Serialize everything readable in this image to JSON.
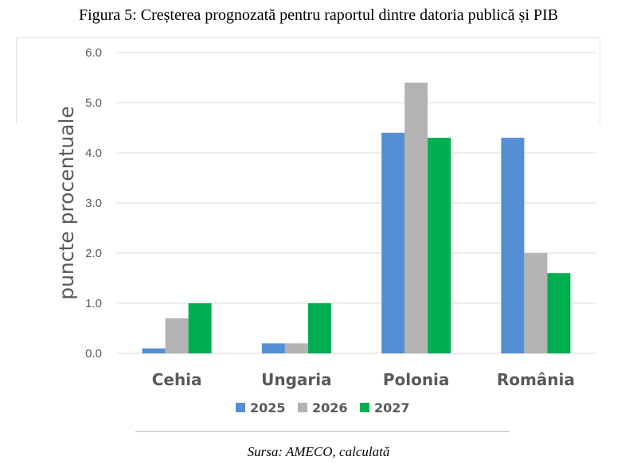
{
  "title": "Figura 5: Creșterea prognozată pentru raportul dintre datoria publică și PIB",
  "source": "Sursa: AMECO, calculată",
  "chart_data": {
    "type": "bar",
    "title": "",
    "ylabel": "puncte procentuale",
    "xlabel": "",
    "ylim": [
      0,
      6
    ],
    "yticks": [
      "0.0",
      "1.0",
      "2.0",
      "3.0",
      "4.0",
      "5.0",
      "6.0"
    ],
    "categories": [
      "Cehia",
      "Ungaria",
      "Polonia",
      "România"
    ],
    "series": [
      {
        "name": "2025",
        "color": "#558ed5",
        "values": [
          0.1,
          0.2,
          4.4,
          4.3
        ]
      },
      {
        "name": "2026",
        "color": "#b3b3b3",
        "values": [
          0.7,
          0.2,
          5.4,
          2.0
        ]
      },
      {
        "name": "2027",
        "color": "#00b050",
        "values": [
          1.0,
          1.0,
          4.3,
          1.6
        ]
      }
    ],
    "grid": true,
    "legend": "bottom"
  }
}
